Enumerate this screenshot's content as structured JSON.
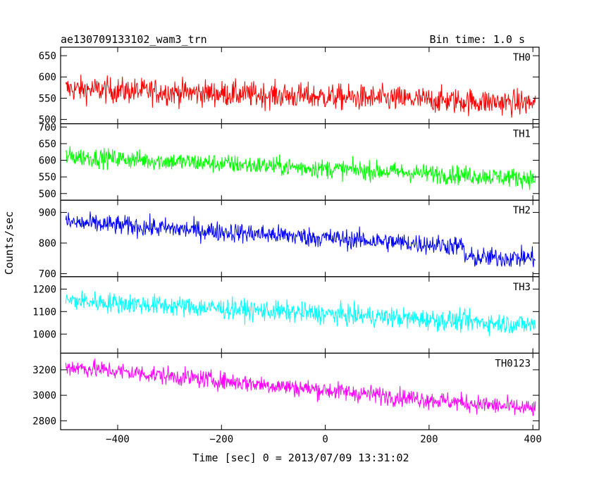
{
  "header": {
    "title": "ae130709133102_wam3_trn",
    "bin_time": "Bin time: 1.0 s"
  },
  "chart_data": {
    "type": "line",
    "xlabel": "Time [sec] 0 = 2013/07/09 13:31:02",
    "ylabel": "Counts/sec",
    "xlim": [
      -510,
      412
    ],
    "x_ticks": [
      -400,
      -200,
      0,
      200,
      400
    ],
    "x_tick_labels": [
      "−400",
      "−200",
      "0",
      "200",
      "400"
    ],
    "x_start": -500,
    "x_end": 405,
    "bin_time_s": 1.0,
    "grid": false,
    "panels": [
      {
        "name": "TH0",
        "color": "#ff0000",
        "ylim": [
          490,
          670
        ],
        "y_ticks": [
          500,
          550,
          600,
          650
        ],
        "y_tick_labels": [
          "500",
          "550",
          "600",
          "650"
        ],
        "trend_start": 572,
        "trend_end": 538,
        "noise_amplitude": 30
      },
      {
        "name": "TH1",
        "color": "#00ff00",
        "ylim": [
          480,
          710
        ],
        "y_ticks": [
          500,
          550,
          600,
          650,
          700
        ],
        "y_tick_labels": [
          "500",
          "550",
          "600",
          "650",
          "700"
        ],
        "trend_start": 612,
        "trend_end": 545,
        "noise_amplitude": 28
      },
      {
        "name": "TH2",
        "color": "#0000ff",
        "ylim": [
          690,
          940
        ],
        "y_ticks": [
          700,
          800,
          900
        ],
        "y_tick_labels": [
          "700",
          "800",
          "900"
        ],
        "trend_start": 868,
        "trend_end": 775,
        "step_at": 268,
        "step_level": 752,
        "noise_amplitude": 32
      },
      {
        "name": "TH3",
        "color": "#00ffff",
        "ylim": [
          915,
          1255
        ],
        "y_ticks": [
          1000,
          1100,
          1200
        ],
        "y_tick_labels": [
          "1000",
          "1100",
          "1200"
        ],
        "trend_start": 1150,
        "trend_end": 1040,
        "noise_amplitude": 45
      },
      {
        "name": "TH0123",
        "color": "#ff00ff",
        "ylim": [
          2730,
          3330
        ],
        "y_ticks": [
          2800,
          3000,
          3200
        ],
        "y_tick_labels": [
          "2800",
          "3000",
          "3200"
        ],
        "trend_start": 3225,
        "trend_end": 2890,
        "noise_amplitude": 70
      }
    ]
  }
}
